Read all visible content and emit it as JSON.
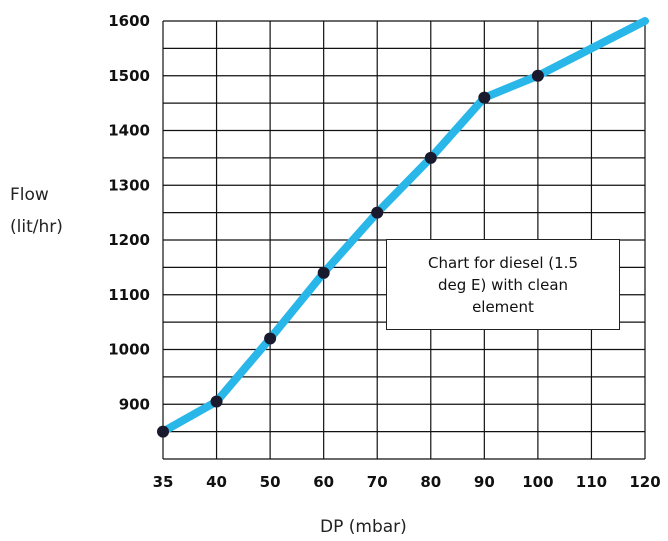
{
  "chart_data": {
    "type": "line",
    "xlabel": "DP (mbar)",
    "ylabel": [
      "Flow",
      "(lit/hr)"
    ],
    "x_categories": [
      "35",
      "40",
      "50",
      "60",
      "70",
      "80",
      "90",
      "100",
      "110",
      "120"
    ],
    "y_ticks": [
      "1600",
      "1500",
      "1400",
      "1300",
      "1200",
      "1100",
      "1000",
      "900"
    ],
    "ylim": [
      800,
      1600
    ],
    "grid": true,
    "series": [
      {
        "color": "#29b6e8",
        "points": [
          {
            "x": "35",
            "y": 850
          },
          {
            "x": "40",
            "y": 905
          },
          {
            "x": "50",
            "y": 1020
          },
          {
            "x": "60",
            "y": 1140
          },
          {
            "x": "70",
            "y": 1250
          },
          {
            "x": "80",
            "y": 1350
          },
          {
            "x": "90",
            "y": 1460
          },
          {
            "x": "100",
            "y": 1500
          },
          {
            "x": "120",
            "y": 1600
          }
        ],
        "markers": [
          "35",
          "40",
          "50",
          "60",
          "70",
          "80",
          "90",
          "100"
        ]
      }
    ],
    "annotation": "Chart for diesel (1.5 deg E) with clean element"
  }
}
